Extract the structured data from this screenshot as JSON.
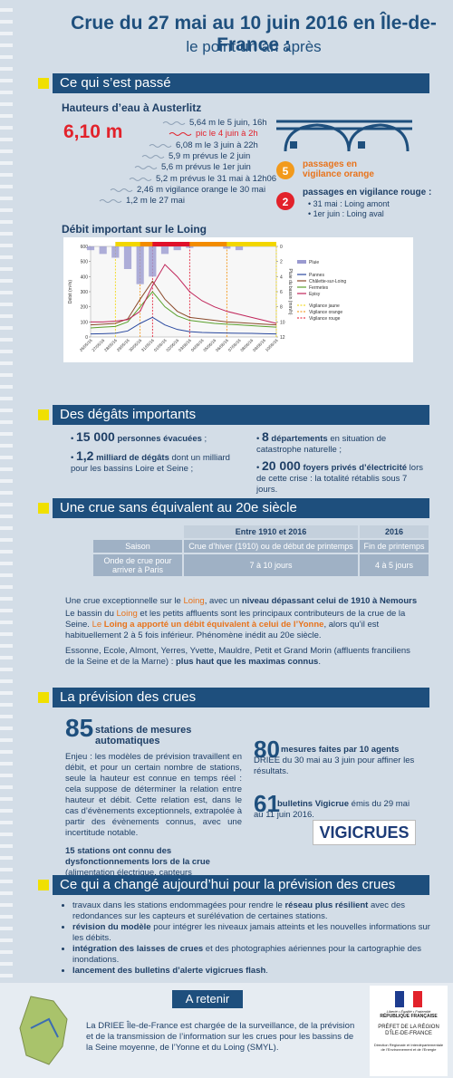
{
  "header": {
    "title": "Crue du 27 mai au 10 juin 2016 en Île-de-France :",
    "subtitle": "le point un an après"
  },
  "section1": {
    "title": "Ce qui s’est passé",
    "heights": {
      "title": "Hauteurs d’eau à Austerlitz",
      "peak": "6,10 m",
      "items": [
        "5,64 m le 5 juin, 16h",
        "pic le 4 juin à 2h",
        "6,08 m le 3 juin à 22h",
        "5,9 m prévus le 2 juin",
        "5,6 m prévus le 1er juin",
        "5,2 m prévus le 31 mai à 12h06",
        "2,46 m vigilance orange le 30 mai",
        "1,2 m le 27 mai"
      ]
    },
    "vigilance": {
      "orange_count": "5",
      "orange_text": "passages en vigilance orange",
      "red_count": "2",
      "red_text": "passages en vigilance rouge :",
      "red_items": [
        "31 mai : Loing amont",
        "1er juin : Loing aval"
      ]
    }
  },
  "chart_data": {
    "type": "line",
    "title": "Débit important sur le Loing",
    "y_label": "Débit (m³/s)",
    "y2_label": "Pluie du bassin (mm/h)",
    "categories": [
      "26/05/16",
      "27/05/16",
      "28/05/16",
      "29/05/16",
      "30/05/16",
      "31/05/16",
      "01/06/16",
      "02/06/16",
      "03/06/16",
      "04/06/16",
      "05/06/16",
      "06/06/16",
      "07/06/16",
      "08/06/16",
      "09/06/16",
      "10/06/16"
    ],
    "ylim": [
      0,
      600
    ],
    "yticks": [
      0,
      100,
      200,
      300,
      400,
      500,
      600
    ],
    "y2lim": [
      0,
      12
    ],
    "y2ticks": [
      0,
      2,
      4,
      6,
      8,
      10,
      12
    ],
    "y2_reversed": true,
    "series": [
      {
        "name": "Pluie",
        "type": "bar",
        "axis": "y2",
        "color": "#9a9ad0",
        "values": [
          0.5,
          1,
          1.5,
          3,
          5,
          4,
          1,
          0.5,
          0.2,
          0,
          0,
          0.3,
          0.5,
          0,
          0,
          0
        ]
      },
      {
        "name": "Pannes",
        "color": "#2b4aa0",
        "values": [
          20,
          22,
          25,
          40,
          90,
          130,
          80,
          50,
          35,
          30,
          28,
          26,
          25,
          24,
          22,
          20
        ]
      },
      {
        "name": "Châlette-sur-Loing",
        "color": "#8b4a2b",
        "values": [
          80,
          85,
          90,
          120,
          250,
          370,
          250,
          170,
          130,
          120,
          110,
          100,
          95,
          90,
          85,
          80
        ]
      },
      {
        "name": "Fermetes",
        "color": "#5aa02c",
        "values": [
          60,
          65,
          70,
          100,
          200,
          300,
          200,
          140,
          110,
          100,
          90,
          85,
          80,
          75,
          70,
          65
        ]
      },
      {
        "name": "Episy",
        "color": "#c0255a",
        "values": [
          100,
          100,
          105,
          115,
          170,
          340,
          480,
          400,
          300,
          240,
          200,
          170,
          150,
          130,
          110,
          90
        ]
      }
    ],
    "vigilance": [
      {
        "name": "Vigilance jaune",
        "color": "#f2d600",
        "start": "28/05/16",
        "end": "10/06/16"
      },
      {
        "name": "Vigilance orange",
        "color": "#f28c00",
        "start": "30/05/16",
        "end": "06/06/16"
      },
      {
        "name": "Vigilance rouge",
        "color": "#e0102a",
        "start": "31/05/16",
        "end": "03/06/16"
      }
    ]
  },
  "section2": {
    "title": "Des dégâts importants",
    "items": [
      {
        "number": "15 000",
        "strong": "personnes évacuées",
        "text": " ;"
      },
      {
        "number": "1,2",
        "strong": "milliard de dégâts",
        "text": " dont un milliard pour les bassins Loire et Seine ;"
      },
      {
        "number": "8",
        "strong": "départements",
        "text": " en situation de catastrophe naturelle ;"
      },
      {
        "number": "20 000",
        "strong": "foyers privés d’électricité",
        "text": " lors de cette crise : la totalité rétablis sous 7 jours."
      }
    ]
  },
  "section3": {
    "title": "Une crue sans équivalent au 20e siècle",
    "table": {
      "headers": [
        "Entre 1910 et 2016",
        "2016"
      ],
      "rows": [
        [
          "Saison",
          "Crue d’hiver (1910) ou de début de printemps",
          "Fin de printemps"
        ],
        [
          "Onde de crue pour arriver à Paris",
          "7 à 10 jours",
          "4 à 5 jours"
        ]
      ]
    },
    "paragraphs": [
      [
        {
          "text": "Une crue exceptionnelle sur le "
        },
        {
          "text": "Loing",
          "style": "orange"
        },
        {
          "text": ", avec un "
        },
        {
          "text": "niveau dépassant celui de 1910 à Nemours",
          "style": "bold"
        }
      ],
      [
        {
          "text": "Le bassin du "
        },
        {
          "text": "Loing",
          "style": "orange"
        },
        {
          "text": " et les petits affluents sont les principaux contributeurs de la crue de la Seine. "
        },
        {
          "text": "Le ",
          "style": "orange"
        },
        {
          "text": "Loing a apporté un débit équivalent à celui de l’Yonne",
          "style": "orange-bold"
        },
        {
          "text": ", alors qu’il est habituellement 2 à 5 fois inférieur. Phénomène inédit au 20e siècle."
        }
      ],
      [
        {
          "text": "Essonne, Ecole, Almont, Yerres, Yvette, Mauldre, Petit et Grand Morin (affluents franciliens de la Seine et de la Marne) : "
        },
        {
          "text": "plus haut que les maximas connus",
          "style": "bold"
        },
        {
          "text": "."
        }
      ]
    ]
  },
  "section4": {
    "title": "La prévision des crues",
    "stations": {
      "number": "85",
      "text": "stations de mesures automatiques"
    },
    "enjeu": "Enjeu : les modèles de prévision travaillent en débit, et pour un certain nombre de stations, seule la hauteur est connue en temps réel : cela suppose de déterminer la relation entre hauteur et débit. Cette relation est, dans le cas d’évènements exceptionnels, extrapolée à partir des évènements connus, avec une incertitude notable.",
    "failures": [
      {
        "text": "15 stations ont connu des dysfonctionnements lors de la crue",
        "style": "bold"
      },
      {
        "text": " (alimentation électrique, capteurs endommagés, submersion...)."
      }
    ],
    "measures": {
      "number": "80",
      "strong": "mesures faites par 10 agents",
      "text": " DRIEE du 30 mai au 3 juin pour affiner les résultats."
    },
    "bulletins": {
      "number": "61",
      "strong": "bulletins Vigicrue",
      "text": " émis du 29 mai au 11 juin 2016."
    },
    "logo": "VIGICRUES"
  },
  "section5": {
    "title": "Ce qui a changé aujourd’hui pour la prévision des crues",
    "bullets": [
      [
        {
          "text": "travaux dans les stations endommagées pour rendre le "
        },
        {
          "text": "réseau plus résilient",
          "style": "bold"
        },
        {
          "text": " avec des redondances sur les capteurs et surélévation de certaines stations."
        }
      ],
      [
        {
          "text": "révision du modèle",
          "style": "bold"
        },
        {
          "text": " pour intégrer les niveaux jamais atteints et les nouvelles informations sur les débits."
        }
      ],
      [
        {
          "text": "intégration des laisses de crues",
          "style": "bold"
        },
        {
          "text": " et des photographies aériennes pour la cartographie des inondations."
        }
      ],
      [
        {
          "text": "lancement des bulletins d’alerte vigicrues flash",
          "style": "bold"
        },
        {
          "text": "."
        }
      ]
    ]
  },
  "footer": {
    "title": "A retenir",
    "text": "La DRIEE Île-de-France est chargée de la surveillance, de la prévision et de la transmission de l’information sur les crues pour les bassins de la Seine moyenne, de l’Yonne et du Loing (SMYL).",
    "logo": {
      "motto": "Liberté • Égalité • Fraternité",
      "republic": "RÉPUBLIQUE FRANÇAISE",
      "prefect": "PRÉFET DE LA RÉGION D’ÎLE-DE-FRANCE",
      "direction": "Direction Régionale et Interdépartementale de l’Environnement et de l’Energie"
    }
  }
}
